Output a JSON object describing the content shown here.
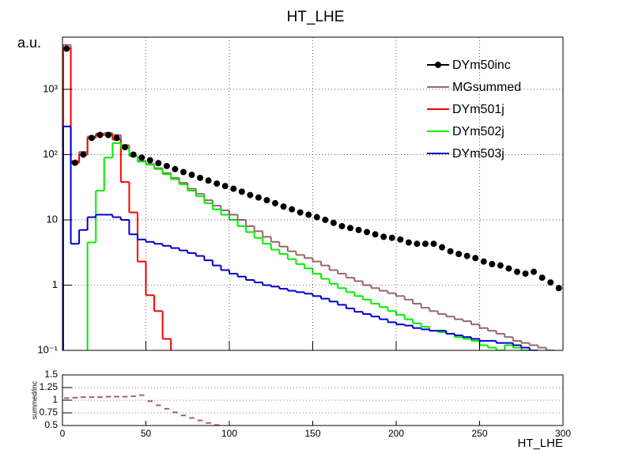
{
  "chart_data": [
    {
      "type": "histogram",
      "title": "HT_LHE",
      "y_label": "a.u.",
      "log_y": true,
      "grid": true,
      "legend": "top-right",
      "bins": [
        0,
        5,
        10,
        15,
        20,
        25,
        30,
        35,
        40,
        45,
        50,
        55,
        60,
        65,
        70,
        75,
        80,
        85,
        90,
        95,
        100,
        105,
        110,
        115,
        120,
        125,
        130,
        135,
        140,
        145,
        150,
        155,
        160,
        165,
        170,
        175,
        180,
        185,
        190,
        195,
        200,
        205,
        210,
        215,
        220,
        225,
        230,
        235,
        240,
        245,
        250,
        255,
        260,
        265,
        270,
        275,
        280,
        285,
        290,
        295,
        300
      ],
      "xlim": [
        0,
        300
      ],
      "ylim": [
        0.1,
        6300
      ],
      "yticks": [
        {
          "value": 0.1,
          "label": "10⁻¹"
        },
        1,
        10,
        {
          "value": 100,
          "label": "10²"
        },
        {
          "value": 1000,
          "label": "10³"
        }
      ],
      "series": [
        {
          "name": "DYm50inc",
          "color": "#000000",
          "style": "markers",
          "values": [
            4200,
            75,
            100,
            180,
            200,
            200,
            180,
            130,
            100,
            90,
            82,
            74,
            67,
            60,
            54,
            49,
            44,
            40,
            36,
            33,
            30,
            27,
            24,
            22,
            20,
            18,
            16,
            14.5,
            13,
            12,
            11,
            10,
            9,
            8,
            7.5,
            7,
            6.5,
            6,
            5.5,
            5.3,
            5,
            4.5,
            4.3,
            4.3,
            4.3,
            3.8,
            3.3,
            3,
            2.8,
            2.6,
            2.3,
            2.1,
            2,
            1.8,
            1.6,
            1.5,
            1.6,
            1.3,
            1.1,
            0.9
          ]
        },
        {
          "name": "MGsummed",
          "color": "#996666",
          "style": "step",
          "values": [
            4800,
            80,
            110,
            190,
            210,
            215,
            200,
            140,
            95,
            80,
            72,
            62,
            52,
            44,
            37,
            30,
            25,
            20,
            16.5,
            14,
            12,
            10,
            8,
            6.7,
            5.5,
            4.6,
            3.9,
            3.3,
            2.9,
            2.6,
            2.3,
            2,
            1.7,
            1.5,
            1.3,
            1.15,
            1,
            0.9,
            0.82,
            0.75,
            0.68,
            0.6,
            0.52,
            0.45,
            0.4,
            0.36,
            0.33,
            0.3,
            0.28,
            0.25,
            0.22,
            0.2,
            0.18,
            0.16,
            0.14,
            0.13,
            0.12,
            0.11,
            0.1,
            0
          ]
        },
        {
          "name": "DYm501j",
          "color": "#ff0000",
          "style": "step",
          "values": [
            4300,
            75,
            100,
            180,
            200,
            200,
            170,
            38,
            13,
            2.3,
            0.7,
            0.4,
            0.15,
            0,
            0,
            0,
            0,
            0,
            0,
            0,
            0,
            0,
            0,
            0,
            0,
            0,
            0,
            0,
            0,
            0,
            0,
            0,
            0,
            0,
            0,
            0,
            0,
            0,
            0,
            0,
            0,
            0,
            0,
            0,
            0,
            0,
            0,
            0,
            0,
            0,
            0,
            0,
            0,
            0,
            0,
            0,
            0,
            0,
            0,
            0
          ]
        },
        {
          "name": "DYm502j",
          "color": "#00ee00",
          "style": "step",
          "values": [
            0,
            0,
            0,
            4.5,
            28,
            90,
            150,
            125,
            95,
            78,
            70,
            60,
            50,
            42,
            35,
            28,
            23,
            18,
            14.5,
            12,
            10,
            8,
            6.5,
            5.3,
            4.3,
            3.5,
            3,
            2.5,
            2.1,
            1.8,
            1.5,
            1.25,
            1.05,
            0.9,
            0.78,
            0.68,
            0.6,
            0.52,
            0.46,
            0.4,
            0.35,
            0.3,
            0.26,
            0.23,
            0.2,
            0.19,
            0.18,
            0.16,
            0.15,
            0.14,
            0.12,
            0.11,
            0.1,
            0.12,
            0.11,
            0.1,
            0,
            0,
            0,
            0
          ]
        },
        {
          "name": "DYm503j",
          "color": "#0000cc",
          "style": "step",
          "values": [
            270,
            4.3,
            7,
            11,
            12,
            12,
            11,
            10,
            6,
            5,
            4.6,
            4.3,
            4,
            3.7,
            3.4,
            3.1,
            2.8,
            2.4,
            2,
            1.7,
            1.5,
            1.35,
            1.2,
            1.1,
            1,
            0.95,
            0.88,
            0.82,
            0.78,
            0.74,
            0.68,
            0.62,
            0.56,
            0.5,
            0.44,
            0.39,
            0.36,
            0.33,
            0.3,
            0.27,
            0.25,
            0.24,
            0.22,
            0.21,
            0.2,
            0.2,
            0.18,
            0.17,
            0.16,
            0.15,
            0.14,
            0.14,
            0.13,
            0.13,
            0.12,
            0.11,
            0.1,
            0,
            0,
            0
          ]
        }
      ]
    },
    {
      "type": "histogram",
      "y_label": "summed/inc",
      "x_label": "HT_LHE",
      "log_y": false,
      "grid": true,
      "bins": [
        0,
        5,
        10,
        15,
        20,
        25,
        30,
        35,
        40,
        45,
        50,
        55,
        60,
        65,
        70,
        75,
        80,
        85,
        90,
        95,
        100,
        105,
        110,
        115,
        120,
        125,
        130,
        135,
        140,
        145,
        150,
        155,
        160,
        165,
        170,
        175,
        180,
        185,
        190,
        195,
        200,
        205,
        210,
        215,
        220,
        225,
        230,
        235,
        240,
        245,
        250,
        255,
        260,
        265,
        270,
        275,
        280,
        285,
        290,
        295,
        300
      ],
      "xlim": [
        0,
        300
      ],
      "xticks": [
        0,
        50,
        100,
        150,
        200,
        250,
        300
      ],
      "ylim": [
        0.5,
        1.5
      ],
      "yticks": [
        0.5,
        0.75,
        1,
        1.25,
        1.5
      ],
      "series": [
        {
          "color": "#996666",
          "style": "dash",
          "values": [
            1.04,
            1.05,
            1.06,
            1.06,
            1.06,
            1.07,
            1.07,
            1.07,
            1.08,
            1.1,
            0.98,
            0.9,
            0.83,
            0.76,
            0.7,
            0.65,
            0.6,
            0.55,
            0.51,
            null,
            null,
            null,
            null,
            null,
            null,
            null,
            null,
            null,
            null,
            null,
            null,
            null,
            null,
            null,
            null,
            null,
            null,
            null,
            null,
            null,
            null,
            null,
            null,
            null,
            null,
            null,
            null,
            null,
            null,
            null,
            null,
            null,
            null,
            null,
            null,
            null,
            null,
            null,
            null,
            null
          ]
        }
      ]
    }
  ]
}
